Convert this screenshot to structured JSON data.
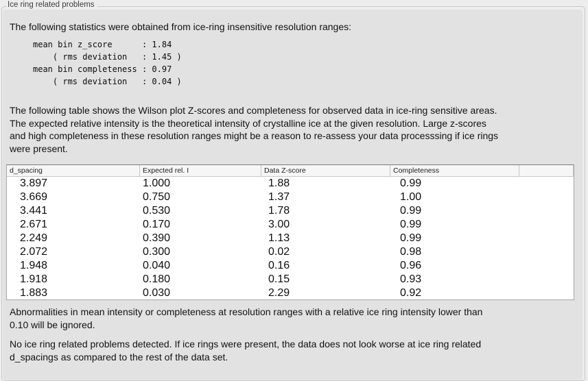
{
  "panel": {
    "title": "Ice ring related problems"
  },
  "colors": {
    "outer_bg": "#ededed",
    "panel_bg": "#e2e2e2",
    "panel_border": "#c9c9c9",
    "table_header_bg": "#f6f6f6",
    "table_border": "#a6a6a6",
    "text": "#121212"
  },
  "intro": "The following statistics were obtained from ice-ring insensitive resolution ranges:",
  "stats_lines": [
    "mean bin z_score      : 1.84",
    "    ( rms deviation   : 1.45 )",
    "mean bin completeness : 0.97",
    "    ( rms deviation   : 0.04 )"
  ],
  "description_lines": [
    "The following table shows the Wilson plot Z-scores and completeness for observed data in ice-ring sensitive areas.",
    "The expected relative intensity is the theoretical intensity of crystalline ice at the given resolution. Large z-scores",
    "and high completeness in these resolution ranges might be a reason to re-assess your data processsing if ice rings",
    "were present."
  ],
  "table": {
    "columns": [
      "d_spacing",
      "Expected rel. I",
      "Data Z-score",
      "Completeness"
    ],
    "rows": [
      [
        "3.897",
        "1.000",
        "1.88",
        "0.99"
      ],
      [
        "3.669",
        "0.750",
        "1.37",
        "1.00"
      ],
      [
        "3.441",
        "0.530",
        "1.78",
        "0.99"
      ],
      [
        "2.671",
        "0.170",
        "3.00",
        "0.99"
      ],
      [
        "2.249",
        "0.390",
        "1.13",
        "0.99"
      ],
      [
        "2.072",
        "0.300",
        "0.02",
        "0.98"
      ],
      [
        "1.948",
        "0.040",
        "0.16",
        "0.96"
      ],
      [
        "1.918",
        "0.180",
        "0.15",
        "0.93"
      ],
      [
        "1.883",
        "0.030",
        "2.29",
        "0.92"
      ]
    ]
  },
  "note_lines": [
    "Abnormalities in mean intensity or completeness at resolution ranges with a relative ice ring intensity lower than",
    "0.10 will be ignored."
  ],
  "conclusion_lines": [
    "No ice ring related problems detected. If ice rings were present, the data does not look worse at ice ring related",
    "d_spacings as compared to the rest of the data set."
  ]
}
